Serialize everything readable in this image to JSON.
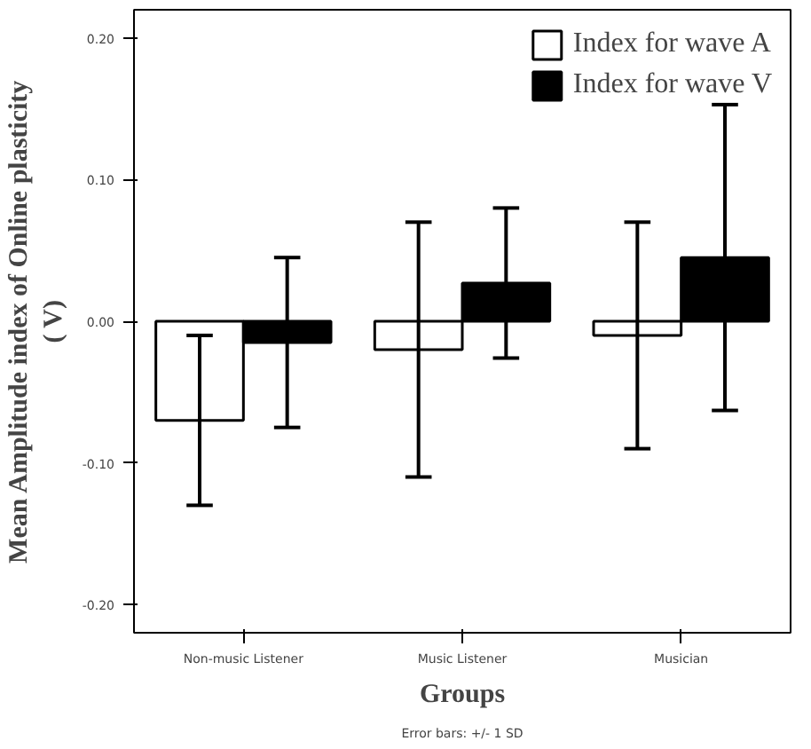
{
  "chart_data": {
    "type": "bar",
    "xlabel": "Groups",
    "ylabel": "Mean Amplitude index of Online plasticity\n( V)",
    "categories": [
      "Non-music Listener",
      "Music Listener",
      "Musician"
    ],
    "series": [
      {
        "name": "Index for wave A",
        "color": "#ffffff",
        "values": [
          -0.07,
          -0.02,
          -0.01
        ],
        "errors": [
          0.06,
          0.09,
          0.08
        ]
      },
      {
        "name": "Index for wave V",
        "color": "#000000",
        "values": [
          -0.015,
          0.027,
          0.045
        ],
        "errors": [
          0.06,
          0.053,
          0.108
        ]
      }
    ],
    "ylim": [
      -0.22,
      0.22
    ],
    "yticks": [
      {
        "value": -0.2,
        "label": "-0.20"
      },
      {
        "value": -0.1,
        "label": "-0.10"
      },
      {
        "value": 0,
        "label": "0.00"
      },
      {
        "value": 0.1,
        "label": "0.10"
      },
      {
        "value": 0.2,
        "label": "0.20"
      }
    ],
    "grid": false,
    "legend": "top right",
    "annotations": [
      "Error bars: +/- 1 SD"
    ]
  }
}
